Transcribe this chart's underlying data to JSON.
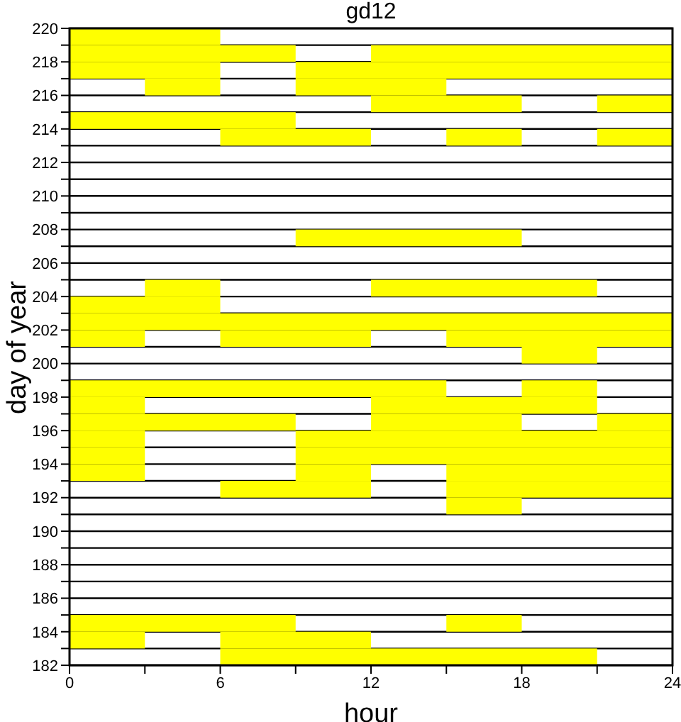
{
  "chart_data": {
    "type": "bar",
    "orientation": "horizontal",
    "title": "gd12",
    "xlabel": "hour",
    "ylabel": "day of year",
    "x": [
      182.5,
      183.5,
      184.5,
      185.5,
      186.5,
      187.5,
      188.5,
      189.5,
      190.5,
      191.5,
      192.5,
      193.5,
      194.5,
      195.5,
      196.5,
      197.5,
      198.5,
      199.5,
      200.5,
      201.5,
      202.5,
      203.5,
      204.5,
      205.5,
      206.5,
      207.5,
      208.5,
      209.5,
      210.5,
      211.5,
      212.5,
      213.5,
      214.5,
      215.5,
      216.5,
      217.5,
      218.5,
      219.5
    ],
    "series": [
      {
        "color": "#ffff00",
        "base": [
          6,
          0,
          0,
          null,
          null,
          null,
          null,
          null,
          null,
          15,
          6,
          0,
          0,
          0,
          0,
          0,
          0,
          null,
          18,
          0,
          0,
          0,
          3,
          null,
          null,
          9,
          null,
          null,
          null,
          null,
          null,
          6,
          0,
          12,
          3,
          0,
          0,
          0
        ],
        "values": [
          15,
          3,
          9,
          null,
          null,
          null,
          null,
          null,
          null,
          3,
          6,
          3,
          3,
          3,
          9,
          3,
          15,
          null,
          3,
          3,
          24,
          6,
          3,
          null,
          null,
          9,
          null,
          null,
          null,
          null,
          null,
          6,
          9,
          6,
          3,
          6,
          9,
          6
        ]
      },
      {
        "color": "#ffff00",
        "base": [
          null,
          6,
          15,
          null,
          null,
          null,
          null,
          null,
          null,
          null,
          15,
          9,
          9,
          9,
          12,
          12,
          18,
          null,
          null,
          6,
          null,
          null,
          12,
          null,
          null,
          null,
          null,
          null,
          null,
          null,
          null,
          15,
          null,
          21,
          9,
          9,
          12,
          null
        ],
        "values": [
          null,
          6,
          3,
          null,
          null,
          null,
          null,
          null,
          null,
          null,
          9,
          3,
          15,
          15,
          6,
          9,
          3,
          null,
          null,
          6,
          null,
          null,
          9,
          null,
          null,
          null,
          null,
          null,
          null,
          null,
          null,
          3,
          null,
          3,
          6,
          15,
          12,
          null
        ]
      },
      {
        "color": "#ffff00",
        "base": [
          null,
          null,
          null,
          null,
          null,
          null,
          null,
          null,
          null,
          null,
          null,
          15,
          null,
          null,
          21,
          null,
          null,
          null,
          null,
          15,
          null,
          null,
          null,
          null,
          null,
          null,
          null,
          null,
          null,
          null,
          null,
          21,
          null,
          null,
          null,
          null,
          null,
          null
        ],
        "values": [
          null,
          null,
          null,
          null,
          null,
          null,
          null,
          null,
          null,
          null,
          null,
          9,
          null,
          null,
          3,
          null,
          null,
          null,
          null,
          9,
          null,
          null,
          null,
          null,
          null,
          null,
          null,
          null,
          null,
          null,
          null,
          3,
          null,
          null,
          null,
          null,
          null,
          null
        ]
      }
    ],
    "xlim": [
      0,
      24
    ],
    "xticks": [
      0,
      {
        "value": 3,
        "label": null
      },
      6,
      {
        "value": 9,
        "label": null
      },
      12,
      {
        "value": 15,
        "label": null
      },
      18,
      {
        "value": 21,
        "label": null
      },
      24
    ],
    "ylim": [
      182,
      220
    ],
    "yticks": [
      182,
      {
        "value": 183,
        "label": null
      },
      184,
      {
        "value": 185,
        "label": null
      },
      186,
      {
        "value": 187,
        "label": null
      },
      188,
      {
        "value": 189,
        "label": null
      },
      190,
      {
        "value": 191,
        "label": null
      },
      192,
      {
        "value": 193,
        "label": null
      },
      194,
      {
        "value": 195,
        "label": null
      },
      196,
      {
        "value": 197,
        "label": null
      },
      198,
      {
        "value": 199,
        "label": null
      },
      200,
      {
        "value": 201,
        "label": null
      },
      202,
      {
        "value": 203,
        "label": null
      },
      204,
      {
        "value": 205,
        "label": null
      },
      206,
      {
        "value": 207,
        "label": null
      },
      208,
      {
        "value": 209,
        "label": null
      },
      210,
      {
        "value": 211,
        "label": null
      },
      212,
      {
        "value": 213,
        "label": null
      },
      214,
      {
        "value": 215,
        "label": null
      },
      216,
      {
        "value": 217,
        "label": null
      },
      218,
      {
        "value": 219,
        "label": null
      },
      220
    ],
    "grid": "y"
  }
}
